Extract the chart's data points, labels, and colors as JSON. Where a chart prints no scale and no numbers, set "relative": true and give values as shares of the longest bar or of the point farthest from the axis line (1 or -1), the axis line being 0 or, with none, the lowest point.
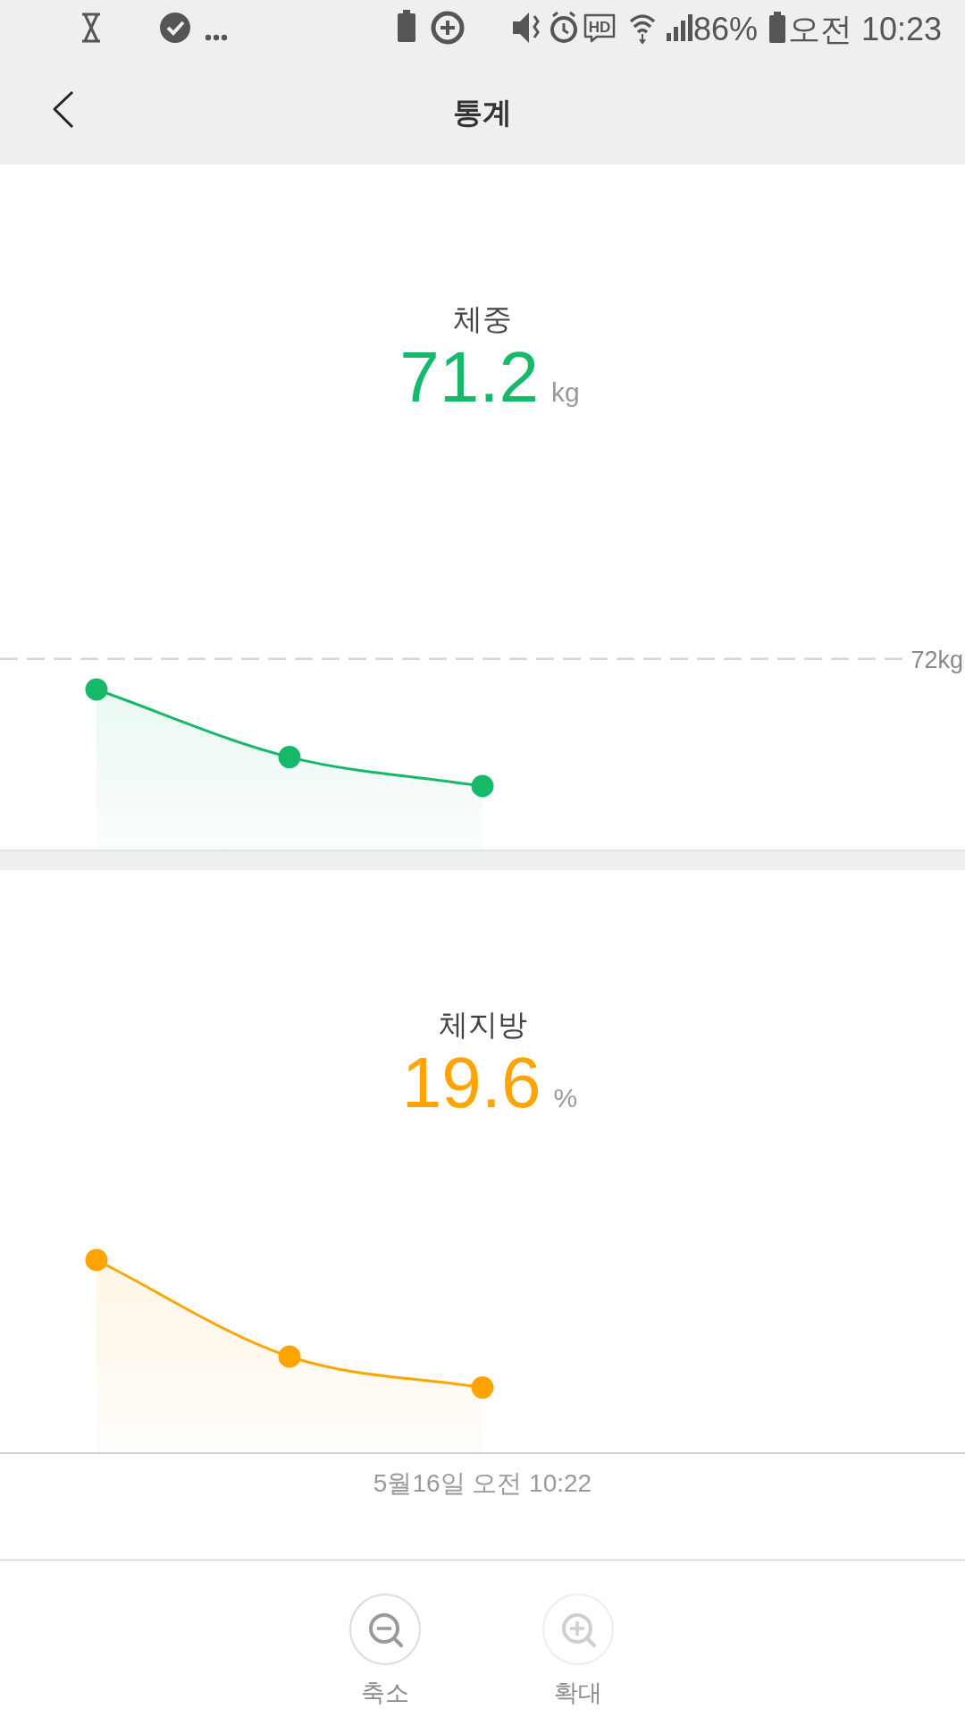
{
  "chart_data": [
    {
      "type": "other",
      "title": "통계",
      "annotations": [
        "HD",
        "86%",
        "오전 10:23"
      ]
    },
    {
      "type": "area",
      "title": "체중",
      "subtitle": "71.2",
      "annotations": [
        "kg"
      ],
      "categories": [
        null,
        null,
        null,
        null,
        null
      ],
      "relative": true,
      "marker": "circle",
      "series": [
        {
          "color": "#16b86a",
          "values": [
            1,
            0.58,
            0.4,
            null,
            null
          ]
        }
      ],
      "ref_lines": [
        {
          "axis": "y",
          "value": 1.19,
          "label": "72kg",
          "color": "#d6d6d6",
          "line_style": "dashed"
        }
      ]
    },
    {
      "type": "area",
      "title": "체지방",
      "subtitle": "19.6",
      "annotations": [
        "%"
      ],
      "xlabel": "5월16일 오전 10:22",
      "categories": [
        null,
        null,
        null,
        null,
        null
      ],
      "relative": true,
      "marker": "circle",
      "series": [
        {
          "color": "#ffa400",
          "values": [
            1,
            0.5,
            0.34,
            null,
            null
          ]
        }
      ]
    },
    {
      "type": "other",
      "annotations": [
        "축소",
        "확대"
      ]
    }
  ]
}
